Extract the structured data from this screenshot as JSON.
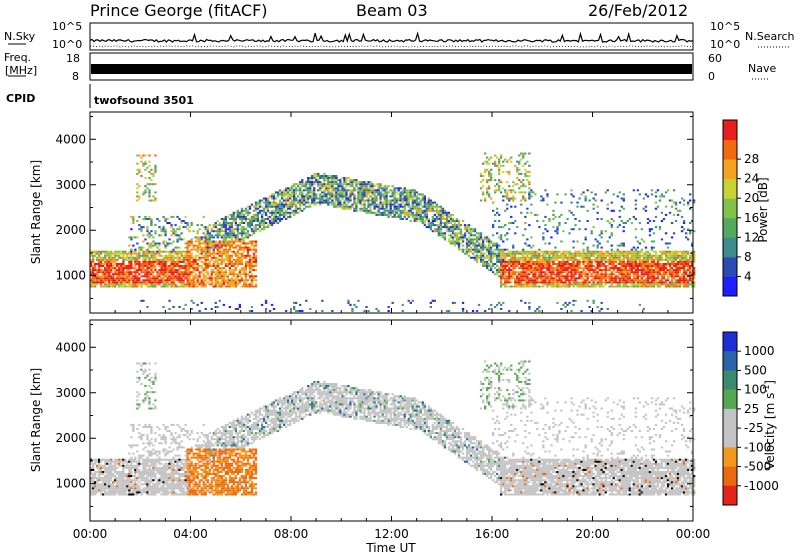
{
  "header": {
    "station": "Prince George (fitACF)",
    "beam": "Beam 03",
    "date": "26/Feb/2012"
  },
  "noise_panel": {
    "left_label": "N.Sky",
    "right_label": "N.Search",
    "left_ticks": [
      "10^5",
      "10^0"
    ],
    "right_ticks": [
      "10^5",
      "10^0"
    ]
  },
  "freq_panel": {
    "left_label_1": "Freq.",
    "left_label_2": "[MHz]",
    "left_ticks": [
      "18",
      "8"
    ],
    "right_label": "Nave",
    "right_ticks": [
      "60",
      "0"
    ]
  },
  "cpid_panel": {
    "label": "CPID",
    "value": "twofsound 3501"
  },
  "time_axis": {
    "label": "Time UT",
    "ticks": [
      "00:00",
      "04:00",
      "08:00",
      "12:00",
      "16:00",
      "20:00",
      "00:00"
    ]
  },
  "chart_data": [
    {
      "type": "heatmap",
      "title": "",
      "xlabel": "Time UT",
      "ylabel": "Slant Range [km]",
      "x_ticks": [
        "00:00",
        "04:00",
        "08:00",
        "12:00",
        "16:00",
        "20:00",
        "00:00"
      ],
      "y_ticks": [
        1000,
        2000,
        3000,
        4000
      ],
      "ylim": [
        180,
        4600
      ],
      "xlim_hours": [
        0,
        24
      ],
      "colorbar": {
        "label": "Power [dB]",
        "ticks": [
          "4",
          "8",
          "12",
          "16",
          "20",
          "24",
          "28"
        ],
        "colors": [
          "#1e1eff",
          "#2a4bb3",
          "#3f8a8a",
          "#55a860",
          "#7fc448",
          "#c9d235",
          "#f6a221",
          "#f26a10",
          "#e61e1e"
        ]
      }
    },
    {
      "type": "heatmap",
      "title": "",
      "xlabel": "Time UT",
      "ylabel": "Slant Range [km]",
      "x_ticks": [
        "00:00",
        "04:00",
        "08:00",
        "12:00",
        "16:00",
        "20:00",
        "00:00"
      ],
      "y_ticks": [
        1000,
        2000,
        3000,
        4000
      ],
      "ylim": [
        180,
        4600
      ],
      "xlim_hours": [
        0,
        24
      ],
      "colorbar": {
        "label": "Velocity [m s^-1]",
        "ticks": [
          "1000",
          "500",
          "100",
          "25",
          "-25",
          "-100",
          "-500",
          "-1000"
        ],
        "colors": [
          "#1e2fd6",
          "#2a63a8",
          "#3c8a6e",
          "#55a850",
          "#c4c4c4",
          "#c4c4c4",
          "#f39a1e",
          "#ea6a12",
          "#e52419"
        ]
      }
    }
  ]
}
